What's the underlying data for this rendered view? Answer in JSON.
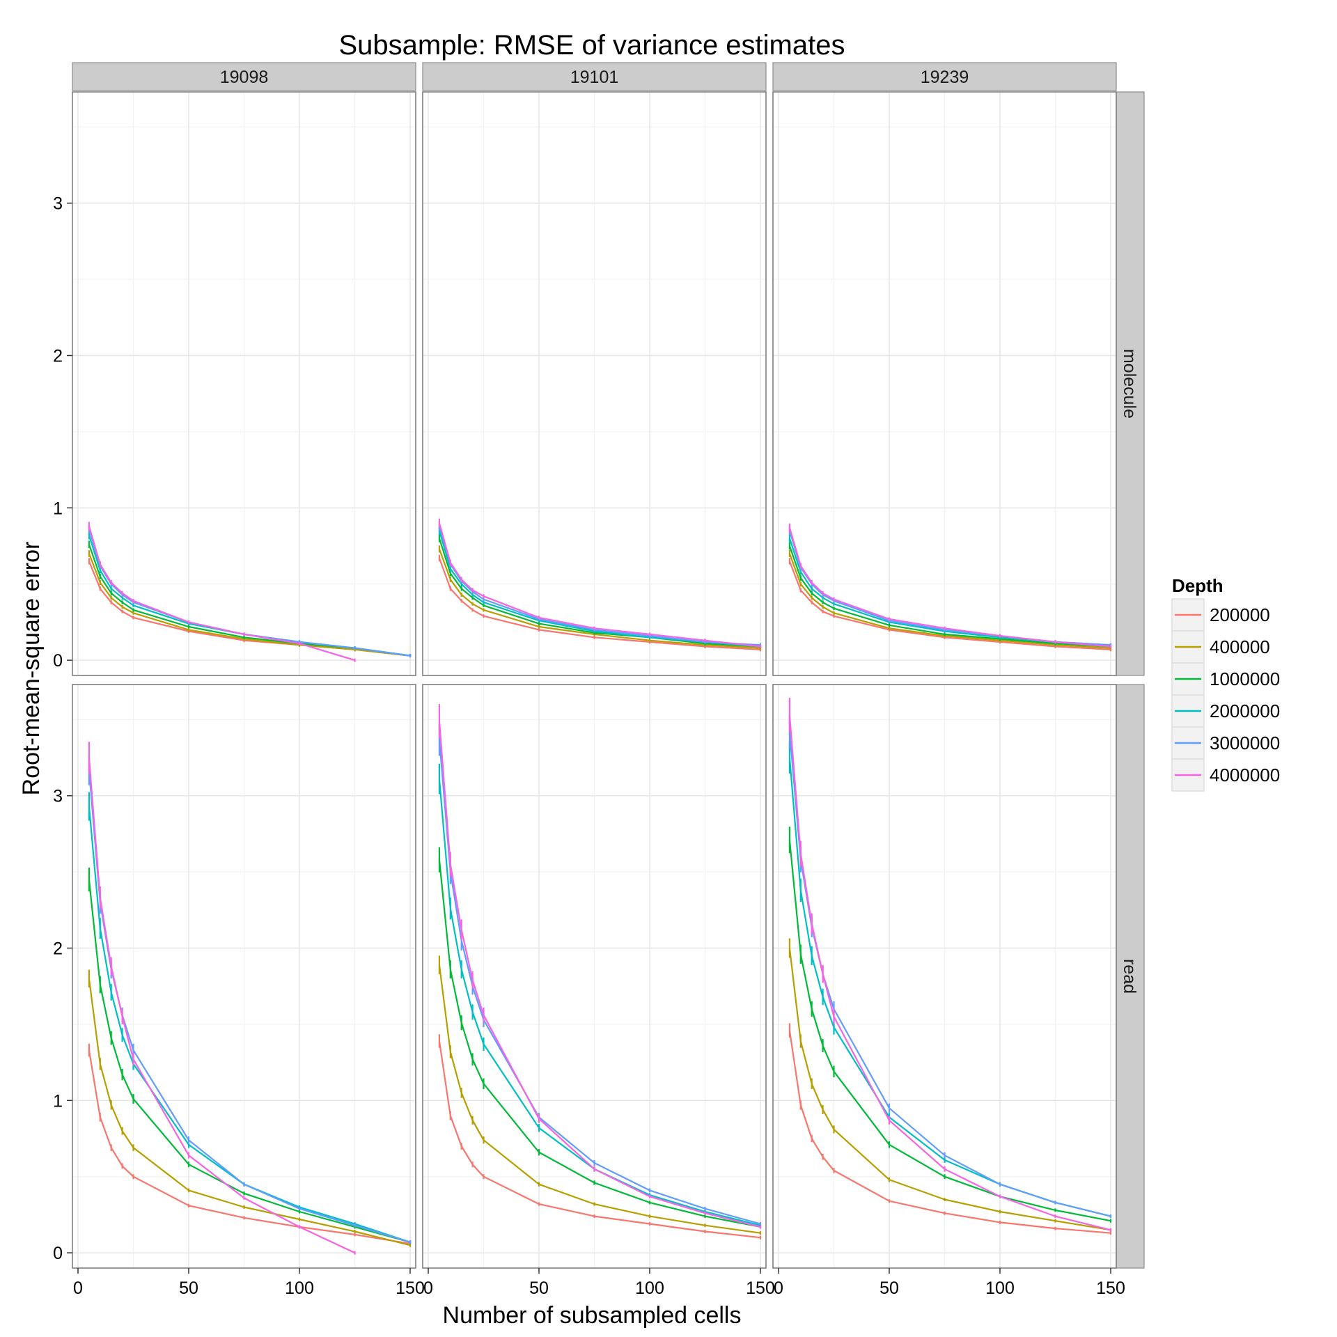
{
  "chart_data": {
    "type": "line",
    "title": "Subsample: RMSE of variance estimates",
    "xlabel": "Number of subsampled cells",
    "ylabel": "Root-mean-square error",
    "xlim": [
      0,
      150
    ],
    "ylim": [
      -0.1,
      3.73
    ],
    "x_ticks": [
      0,
      50,
      100,
      150
    ],
    "y_ticks": [
      0,
      1,
      2,
      3
    ],
    "grid": true,
    "legend_position": "right",
    "columns": [
      "19098",
      "19101",
      "19239"
    ],
    "rows": [
      "molecule",
      "read"
    ],
    "legend": {
      "title": "Depth",
      "series": [
        {
          "name": "200000",
          "color": "#F8766D"
        },
        {
          "name": "400000",
          "color": "#B79F00"
        },
        {
          "name": "1000000",
          "color": "#00BA38"
        },
        {
          "name": "2000000",
          "color": "#00BFC4"
        },
        {
          "name": "3000000",
          "color": "#619CFF"
        },
        {
          "name": "4000000",
          "color": "#F564E3"
        }
      ]
    },
    "panels": [
      {
        "column": "19098",
        "row": "molecule",
        "series": [
          {
            "name": "200000",
            "x": [
              5,
              10,
              15,
              20,
              25,
              50,
              75,
              100,
              125,
              150
            ],
            "y": [
              0.65,
              0.47,
              0.38,
              0.32,
              0.28,
              0.19,
              0.13,
              0.1,
              0.07,
              0.03
            ]
          },
          {
            "name": "400000",
            "x": [
              5,
              10,
              15,
              20,
              25,
              50,
              75,
              100,
              125,
              150
            ],
            "y": [
              0.7,
              0.51,
              0.41,
              0.35,
              0.31,
              0.2,
              0.14,
              0.1,
              0.07,
              0.03
            ]
          },
          {
            "name": "1000000",
            "x": [
              5,
              10,
              15,
              20,
              25,
              50,
              75,
              100,
              125,
              150
            ],
            "y": [
              0.76,
              0.55,
              0.44,
              0.38,
              0.33,
              0.22,
              0.15,
              0.11,
              0.08,
              0.03
            ]
          },
          {
            "name": "2000000",
            "x": [
              5,
              10,
              15,
              20,
              25,
              50,
              75,
              100,
              125,
              150
            ],
            "y": [
              0.82,
              0.59,
              0.47,
              0.41,
              0.36,
              0.24,
              0.17,
              0.12,
              0.08,
              0.03
            ]
          },
          {
            "name": "3000000",
            "x": [
              5,
              10,
              15,
              20,
              25,
              50,
              75,
              100,
              125,
              150
            ],
            "y": [
              0.86,
              0.62,
              0.5,
              0.43,
              0.38,
              0.25,
              0.17,
              0.12,
              0.08,
              0.03
            ]
          },
          {
            "name": "4000000",
            "x": [
              5,
              10,
              15,
              20,
              25,
              50,
              75,
              100,
              125
            ],
            "y": [
              0.88,
              0.63,
              0.51,
              0.44,
              0.39,
              0.25,
              0.17,
              0.11,
              0.0
            ]
          }
        ]
      },
      {
        "column": "19101",
        "row": "molecule",
        "series": [
          {
            "name": "200000",
            "x": [
              5,
              10,
              15,
              20,
              25,
              50,
              75,
              100,
              125,
              150
            ],
            "y": [
              0.67,
              0.47,
              0.39,
              0.33,
              0.29,
              0.2,
              0.15,
              0.12,
              0.09,
              0.07
            ]
          },
          {
            "name": "400000",
            "x": [
              5,
              10,
              15,
              20,
              25,
              50,
              75,
              100,
              125,
              150
            ],
            "y": [
              0.73,
              0.53,
              0.43,
              0.37,
              0.33,
              0.22,
              0.17,
              0.13,
              0.1,
              0.08
            ]
          },
          {
            "name": "1000000",
            "x": [
              5,
              10,
              15,
              20,
              25,
              50,
              75,
              100,
              125,
              150
            ],
            "y": [
              0.8,
              0.57,
              0.47,
              0.41,
              0.36,
              0.24,
              0.18,
              0.15,
              0.11,
              0.09
            ]
          },
          {
            "name": "2000000",
            "x": [
              5,
              10,
              15,
              20,
              25,
              50,
              75,
              100,
              125,
              150
            ],
            "y": [
              0.85,
              0.6,
              0.5,
              0.43,
              0.38,
              0.26,
              0.19,
              0.15,
              0.12,
              0.09
            ]
          },
          {
            "name": "3000000",
            "x": [
              5,
              10,
              15,
              20,
              25,
              50,
              75,
              100,
              125,
              150
            ],
            "y": [
              0.88,
              0.63,
              0.52,
              0.45,
              0.4,
              0.27,
              0.2,
              0.16,
              0.12,
              0.1
            ]
          },
          {
            "name": "4000000",
            "x": [
              5,
              10,
              15,
              20,
              25,
              50,
              75,
              100,
              125,
              150
            ],
            "y": [
              0.9,
              0.64,
              0.53,
              0.46,
              0.42,
              0.28,
              0.21,
              0.17,
              0.13,
              0.09
            ]
          }
        ]
      },
      {
        "column": "19239",
        "row": "molecule",
        "series": [
          {
            "name": "200000",
            "x": [
              5,
              10,
              15,
              20,
              25,
              50,
              75,
              100,
              125,
              150
            ],
            "y": [
              0.65,
              0.46,
              0.38,
              0.32,
              0.29,
              0.2,
              0.15,
              0.12,
              0.09,
              0.07
            ]
          },
          {
            "name": "400000",
            "x": [
              5,
              10,
              15,
              20,
              25,
              50,
              75,
              100,
              125,
              150
            ],
            "y": [
              0.7,
              0.5,
              0.41,
              0.35,
              0.31,
              0.21,
              0.16,
              0.13,
              0.1,
              0.08
            ]
          },
          {
            "name": "1000000",
            "x": [
              5,
              10,
              15,
              20,
              25,
              50,
              75,
              100,
              125,
              150
            ],
            "y": [
              0.75,
              0.54,
              0.44,
              0.38,
              0.34,
              0.23,
              0.17,
              0.14,
              0.11,
              0.09
            ]
          },
          {
            "name": "2000000",
            "x": [
              5,
              10,
              15,
              20,
              25,
              50,
              75,
              100,
              125,
              150
            ],
            "y": [
              0.8,
              0.58,
              0.47,
              0.41,
              0.37,
              0.25,
              0.19,
              0.15,
              0.12,
              0.1
            ]
          },
          {
            "name": "3000000",
            "x": [
              5,
              10,
              15,
              20,
              25,
              50,
              75,
              100,
              125,
              150
            ],
            "y": [
              0.85,
              0.61,
              0.5,
              0.43,
              0.39,
              0.26,
              0.2,
              0.16,
              0.12,
              0.1
            ]
          },
          {
            "name": "4000000",
            "x": [
              5,
              10,
              15,
              20,
              25,
              50,
              75,
              100,
              125,
              150
            ],
            "y": [
              0.87,
              0.62,
              0.51,
              0.44,
              0.4,
              0.27,
              0.21,
              0.16,
              0.12,
              0.09
            ]
          }
        ]
      },
      {
        "column": "19098",
        "row": "read",
        "series": [
          {
            "name": "200000",
            "x": [
              5,
              10,
              15,
              20,
              25,
              50,
              75,
              100,
              125,
              150
            ],
            "y": [
              1.33,
              0.89,
              0.69,
              0.57,
              0.5,
              0.31,
              0.23,
              0.17,
              0.12,
              0.06
            ]
          },
          {
            "name": "400000",
            "x": [
              5,
              10,
              15,
              20,
              25,
              50,
              75,
              100,
              125,
              150
            ],
            "y": [
              1.8,
              1.24,
              0.97,
              0.8,
              0.69,
              0.41,
              0.3,
              0.22,
              0.14,
              0.05
            ]
          },
          {
            "name": "1000000",
            "x": [
              5,
              10,
              15,
              20,
              25,
              50,
              75,
              100,
              125,
              150
            ],
            "y": [
              2.45,
              1.76,
              1.41,
              1.17,
              1.01,
              0.58,
              0.39,
              0.27,
              0.17,
              0.07
            ]
          },
          {
            "name": "2000000",
            "x": [
              5,
              10,
              15,
              20,
              25,
              50,
              75,
              100,
              125,
              150
            ],
            "y": [
              2.93,
              2.13,
              1.71,
              1.43,
              1.24,
              0.71,
              0.45,
              0.3,
              0.19,
              0.07
            ]
          },
          {
            "name": "3000000",
            "x": [
              5,
              10,
              15,
              20,
              25,
              50,
              75,
              100,
              125,
              150
            ],
            "y": [
              3.17,
              2.3,
              1.86,
              1.56,
              1.33,
              0.74,
              0.45,
              0.29,
              0.18,
              0.07
            ]
          },
          {
            "name": "4000000",
            "x": [
              5,
              10,
              15,
              20,
              25,
              50,
              75,
              100,
              125
            ],
            "y": [
              3.25,
              2.33,
              1.88,
              1.55,
              1.27,
              0.64,
              0.36,
              0.17,
              0.0
            ]
          }
        ]
      },
      {
        "column": "19101",
        "row": "read",
        "series": [
          {
            "name": "200000",
            "x": [
              5,
              10,
              15,
              20,
              25,
              50,
              75,
              100,
              125,
              150
            ],
            "y": [
              1.39,
              0.9,
              0.7,
              0.58,
              0.5,
              0.32,
              0.24,
              0.19,
              0.14,
              0.1
            ]
          },
          {
            "name": "400000",
            "x": [
              5,
              10,
              15,
              20,
              25,
              50,
              75,
              100,
              125,
              150
            ],
            "y": [
              1.89,
              1.32,
              1.05,
              0.87,
              0.74,
              0.45,
              0.32,
              0.24,
              0.18,
              0.13
            ]
          },
          {
            "name": "1000000",
            "x": [
              5,
              10,
              15,
              20,
              25,
              50,
              75,
              100,
              125,
              150
            ],
            "y": [
              2.58,
              1.86,
              1.51,
              1.27,
              1.11,
              0.66,
              0.46,
              0.33,
              0.24,
              0.17
            ]
          },
          {
            "name": "2000000",
            "x": [
              5,
              10,
              15,
              20,
              25,
              50,
              75,
              100,
              125,
              150
            ],
            "y": [
              3.11,
              2.26,
              1.86,
              1.58,
              1.37,
              0.82,
              0.55,
              0.38,
              0.27,
              0.18
            ]
          },
          {
            "name": "3000000",
            "x": [
              5,
              10,
              15,
              20,
              25,
              50,
              75,
              100,
              125,
              150
            ],
            "y": [
              3.37,
              2.5,
              2.05,
              1.75,
              1.53,
              0.89,
              0.59,
              0.41,
              0.29,
              0.19
            ]
          },
          {
            "name": "4000000",
            "x": [
              5,
              10,
              15,
              20,
              25,
              50,
              75,
              100,
              125,
              150
            ],
            "y": [
              3.49,
              2.55,
              2.12,
              1.79,
              1.56,
              0.88,
              0.55,
              0.37,
              0.26,
              0.17
            ]
          }
        ]
      },
      {
        "column": "19239",
        "row": "read",
        "series": [
          {
            "name": "200000",
            "x": [
              5,
              10,
              15,
              20,
              25,
              50,
              75,
              100,
              125,
              150
            ],
            "y": [
              1.46,
              0.97,
              0.75,
              0.63,
              0.54,
              0.34,
              0.26,
              0.2,
              0.16,
              0.13
            ]
          },
          {
            "name": "400000",
            "x": [
              5,
              10,
              15,
              20,
              25,
              50,
              75,
              100,
              125,
              150
            ],
            "y": [
              2.0,
              1.39,
              1.11,
              0.94,
              0.81,
              0.48,
              0.35,
              0.27,
              0.21,
              0.15
            ]
          },
          {
            "name": "1000000",
            "x": [
              5,
              10,
              15,
              20,
              25,
              50,
              75,
              100,
              125,
              150
            ],
            "y": [
              2.71,
              1.96,
              1.6,
              1.36,
              1.19,
              0.71,
              0.5,
              0.37,
              0.28,
              0.21
            ]
          },
          {
            "name": "2000000",
            "x": [
              5,
              10,
              15,
              20,
              25,
              50,
              75,
              100,
              125,
              150
            ],
            "y": [
              3.25,
              2.38,
              1.95,
              1.68,
              1.48,
              0.89,
              0.61,
              0.45,
              0.33,
              0.24
            ]
          },
          {
            "name": "3000000",
            "x": [
              5,
              10,
              15,
              20,
              25,
              50,
              75,
              100,
              125,
              150
            ],
            "y": [
              3.42,
              2.58,
              2.14,
              1.83,
              1.6,
              0.95,
              0.64,
              0.45,
              0.33,
              0.24
            ]
          },
          {
            "name": "4000000",
            "x": [
              5,
              10,
              15,
              20,
              25,
              50,
              75,
              100,
              125,
              150
            ],
            "y": [
              3.53,
              2.62,
              2.16,
              1.83,
              1.55,
              0.87,
              0.55,
              0.37,
              0.24,
              0.15
            ]
          }
        ]
      }
    ]
  }
}
